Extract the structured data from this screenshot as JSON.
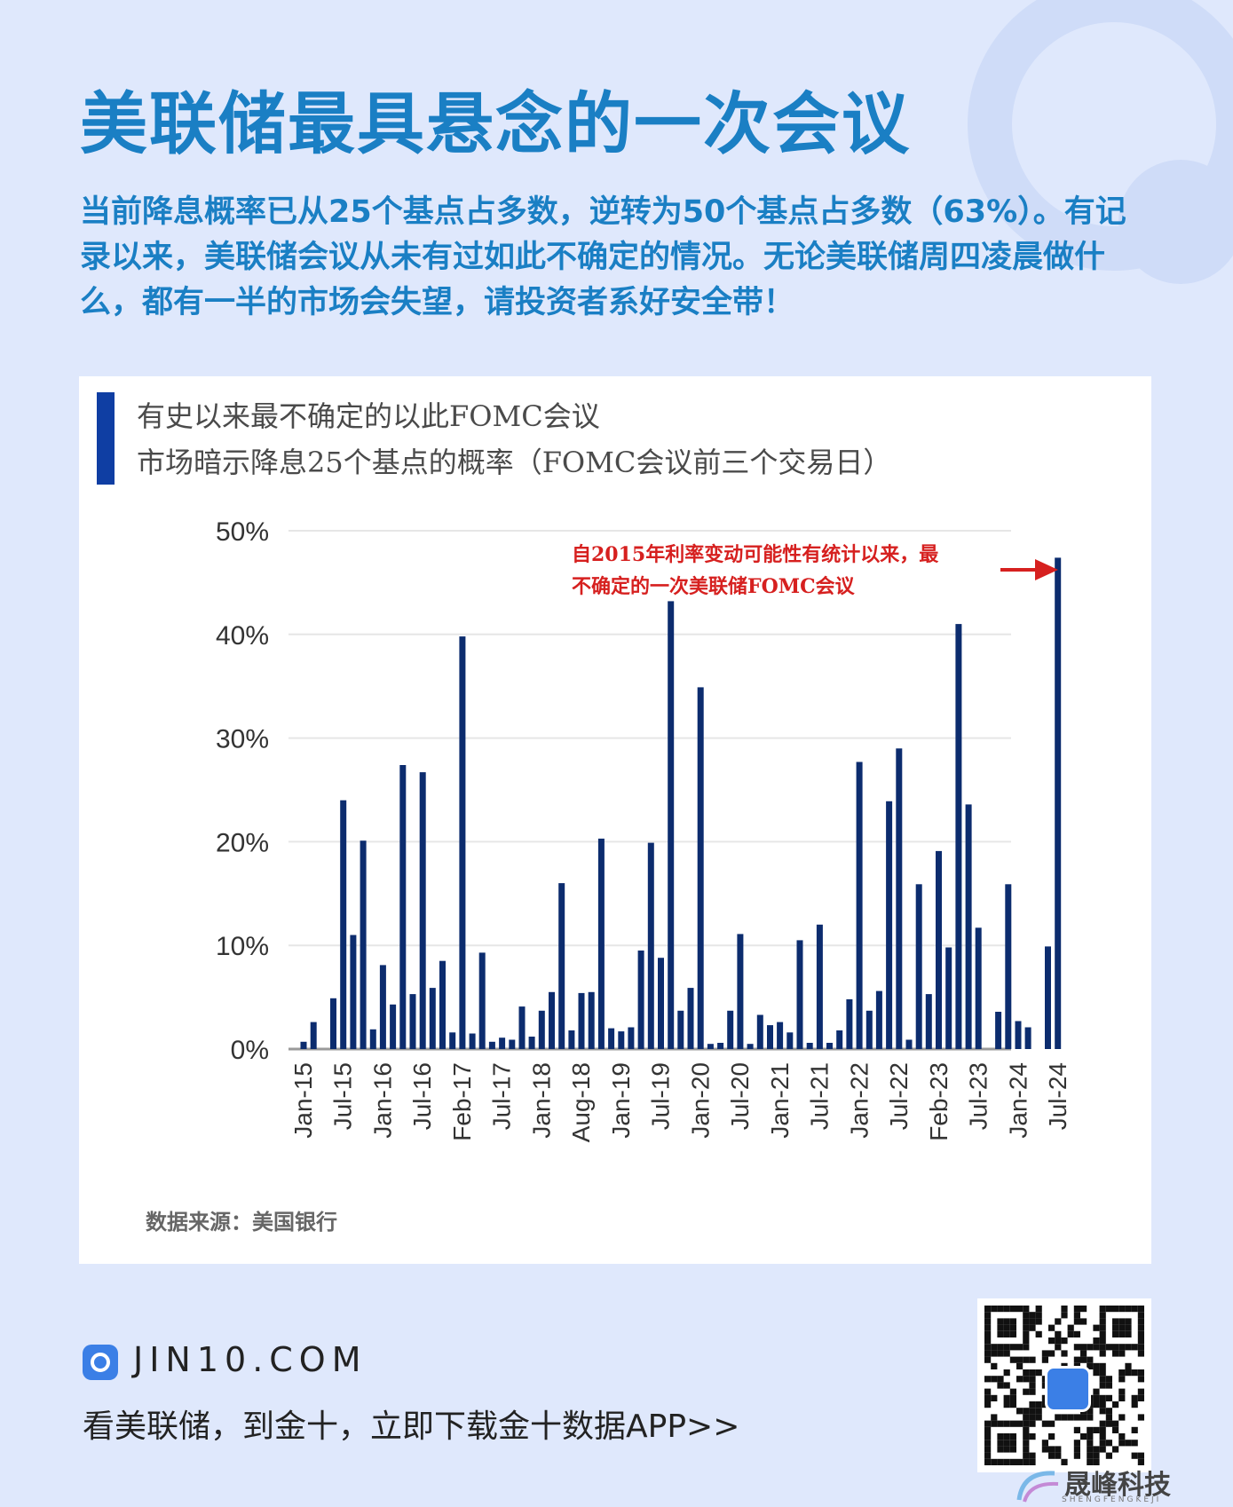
{
  "header": {
    "title": "美联储最具悬念的一次会议",
    "subtitle": "当前降息概率已从25个基点占多数，逆转为50个基点占多数（63%）。有记录以来，美联储会议从未有过如此不确定的情况。无论美联储周四凌晨做什么，都有一半的市场会失望，请投资者系好安全带！"
  },
  "chart": {
    "title": "有史以来最不确定的以此FOMC会议",
    "subtitle": "市场暗示降息25个基点的概率（FOMC会议前三个交易日）",
    "annotation_line1": "自2015年利率变动可能性有统计以来，最",
    "annotation_line2": "不确定的一次美联储FOMC会议",
    "source": "数据来源：美国银行"
  },
  "chart_data": {
    "type": "bar",
    "y_ticks": [
      "0%",
      "10%",
      "20%",
      "30%",
      "40%",
      "50%"
    ],
    "ylim": [
      0,
      50
    ],
    "x_tick_labels": [
      "Jan-15",
      "Jul-15",
      "Jan-16",
      "Jul-16",
      "Feb-17",
      "Jul-17",
      "Jan-18",
      "Aug-18",
      "Jan-19",
      "Jul-19",
      "Jan-20",
      "Jul-20",
      "Jan-21",
      "Jul-21",
      "Jan-22",
      "Jul-22",
      "Feb-23",
      "Jul-23",
      "Jan-24",
      "Jul-24"
    ],
    "values": [
      0.7,
      2.6,
      0,
      4.9,
      24,
      11,
      20.1,
      1.9,
      8.1,
      4.3,
      27.4,
      5.3,
      26.7,
      5.9,
      8.5,
      1.6,
      39.8,
      1.5,
      9.3,
      0.7,
      1.1,
      0.9,
      4.1,
      1.2,
      3.7,
      5.5,
      16,
      1.8,
      5.4,
      5.5,
      20.3,
      2,
      1.7,
      2.1,
      9.5,
      19.9,
      8.8,
      43.2,
      3.7,
      5.9,
      34.9,
      0.5,
      0.6,
      3.7,
      11.1,
      0.5,
      3.3,
      2.3,
      2.6,
      1.6,
      10.5,
      0.6,
      12,
      0.6,
      1.8,
      4.8,
      27.7,
      3.7,
      5.6,
      23.9,
      29,
      0.9,
      15.9,
      5.3,
      19.1,
      9.8,
      41,
      23.6,
      11.7,
      0,
      3.6,
      15.9,
      2.7,
      2.1,
      0,
      9.9,
      47.4
    ],
    "grid": true,
    "legend": "none",
    "bar_color": "#0c2c6e",
    "annotation_color": "#d6201f"
  },
  "footer": {
    "domain": "JIN10.COM",
    "cta": "看美联储，到金十，立即下载金十数据APP>>",
    "watermark": "晟峰科技",
    "watermark_sub": "SHENGFENGKEJI"
  },
  "colors": {
    "background": "#dfe8fc",
    "accent": "#1a7fc4",
    "brand_blue": "#3b7fe6"
  },
  "icons": {
    "app_logo": "jin10-logo-icon",
    "qr": "qr-code"
  }
}
